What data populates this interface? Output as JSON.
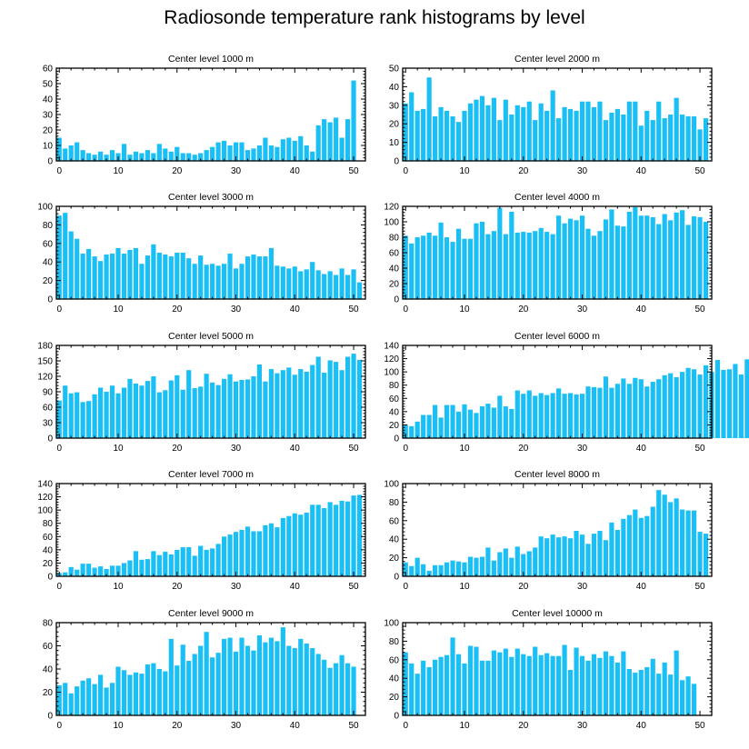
{
  "title": "Radiosonde temperature rank histograms by level",
  "bar_color": "#1ac0f5",
  "chart_data": [
    {
      "type": "bar",
      "title": "Center level 1000 m",
      "ylim": [
        0,
        60
      ],
      "yticks": [
        0,
        10,
        20,
        30,
        40,
        50,
        60
      ],
      "xlim": [
        -0.5,
        52
      ],
      "xticks": [
        0,
        10,
        20,
        30,
        40,
        50
      ],
      "values": [
        15,
        8,
        10,
        12,
        7,
        5,
        4,
        6,
        4,
        7,
        5,
        11,
        4,
        6,
        5,
        7,
        5,
        11,
        8,
        6,
        9,
        5,
        5,
        4,
        5,
        7,
        9,
        12,
        13,
        10,
        12,
        12,
        7,
        8,
        10,
        15,
        10,
        9,
        14,
        15,
        13,
        16,
        10,
        6,
        23,
        27,
        25,
        28,
        15,
        27,
        52,
        0
      ]
    },
    {
      "type": "bar",
      "title": "Center level 2000 m",
      "ylim": [
        0,
        50
      ],
      "yticks": [
        0,
        10,
        20,
        30,
        40,
        50
      ],
      "xlim": [
        -0.5,
        52
      ],
      "xticks": [
        0,
        10,
        20,
        30,
        40,
        50
      ],
      "values": [
        31,
        37,
        27,
        28,
        45,
        24,
        29,
        27,
        24,
        21,
        27,
        31,
        33,
        35,
        30,
        34,
        22,
        33,
        25,
        30,
        29,
        32,
        22,
        31,
        27,
        38,
        23,
        29,
        28,
        27,
        32,
        32,
        29,
        32,
        22,
        26,
        28,
        25,
        32,
        32,
        19,
        27,
        22,
        32,
        23,
        25,
        34,
        25,
        24,
        24,
        17,
        23
      ]
    },
    {
      "type": "bar",
      "title": "Center level 3000 m",
      "ylim": [
        0,
        100
      ],
      "yticks": [
        0,
        20,
        40,
        60,
        80,
        100
      ],
      "xlim": [
        -0.5,
        52
      ],
      "xticks": [
        0,
        10,
        20,
        30,
        40,
        50
      ],
      "values": [
        90,
        93,
        73,
        65,
        49,
        54,
        46,
        41,
        48,
        49,
        55,
        49,
        53,
        55,
        38,
        47,
        59,
        50,
        48,
        46,
        50,
        50,
        44,
        38,
        47,
        37,
        38,
        36,
        38,
        49,
        33,
        38,
        46,
        48,
        46,
        46,
        55,
        36,
        35,
        33,
        35,
        30,
        32,
        40,
        31,
        27,
        30,
        26,
        33,
        26,
        32,
        18
      ]
    },
    {
      "type": "bar",
      "title": "Center level 4000 m",
      "ylim": [
        0,
        120
      ],
      "yticks": [
        0,
        20,
        40,
        60,
        80,
        100,
        120
      ],
      "xlim": [
        -0.5,
        52
      ],
      "xticks": [
        0,
        10,
        20,
        30,
        40,
        50
      ],
      "values": [
        82,
        72,
        80,
        82,
        86,
        82,
        99,
        80,
        74,
        91,
        78,
        78,
        98,
        100,
        84,
        88,
        118,
        84,
        113,
        86,
        87,
        86,
        88,
        92,
        87,
        84,
        108,
        98,
        104,
        102,
        108,
        91,
        82,
        88,
        103,
        116,
        95,
        94,
        113,
        119,
        108,
        108,
        106,
        97,
        110,
        102,
        112,
        115,
        96,
        107,
        106,
        100
      ]
    },
    {
      "type": "bar",
      "title": "Center level 5000 m",
      "ylim": [
        0,
        180
      ],
      "yticks": [
        0,
        30,
        60,
        90,
        120,
        150,
        180
      ],
      "xlim": [
        -0.5,
        52
      ],
      "xticks": [
        0,
        10,
        20,
        30,
        40,
        50
      ],
      "values": [
        73,
        102,
        87,
        89,
        70,
        72,
        85,
        98,
        90,
        102,
        87,
        98,
        115,
        106,
        102,
        111,
        120,
        89,
        93,
        112,
        122,
        94,
        132,
        97,
        100,
        125,
        108,
        103,
        115,
        124,
        110,
        113,
        114,
        120,
        143,
        110,
        134,
        126,
        132,
        137,
        123,
        134,
        129,
        142,
        158,
        127,
        151,
        148,
        132,
        158,
        164,
        152
      ]
    },
    {
      "type": "bar",
      "title": "Center level 6000 m",
      "ylim": [
        0,
        140
      ],
      "yticks": [
        0,
        20,
        40,
        60,
        80,
        100,
        120,
        140
      ],
      "xlim": [
        -0.5,
        52
      ],
      "xticks": [
        0,
        10,
        20,
        30,
        40,
        50
      ],
      "values": [
        20,
        18,
        25,
        35,
        35,
        50,
        31,
        50,
        50,
        40,
        51,
        43,
        38,
        48,
        52,
        46,
        64,
        48,
        44,
        72,
        67,
        72,
        64,
        68,
        65,
        68,
        75,
        67,
        68,
        66,
        67,
        78,
        77,
        76,
        93,
        76,
        82,
        90,
        82,
        91,
        89,
        78,
        85,
        89,
        95,
        98,
        92,
        100,
        106,
        104,
        96,
        110,
        100,
        118,
        103,
        104,
        112,
        96,
        119,
        139
      ]
    },
    {
      "type": "bar",
      "title": "Center level 7000 m",
      "ylim": [
        0,
        140
      ],
      "yticks": [
        0,
        20,
        40,
        60,
        80,
        100,
        120,
        140
      ],
      "xlim": [
        -0.5,
        52
      ],
      "xticks": [
        0,
        10,
        20,
        30,
        40,
        50
      ],
      "values": [
        5,
        6,
        14,
        10,
        19,
        19,
        13,
        15,
        11,
        16,
        16,
        20,
        24,
        38,
        25,
        26,
        38,
        32,
        37,
        33,
        40,
        44,
        44,
        31,
        46,
        40,
        42,
        49,
        60,
        63,
        67,
        70,
        75,
        68,
        68,
        77,
        80,
        74,
        88,
        91,
        95,
        93,
        96,
        108,
        108,
        103,
        112,
        108,
        114,
        113,
        122,
        123
      ]
    },
    {
      "type": "bar",
      "title": "Center level 8000 m",
      "ylim": [
        0,
        100
      ],
      "yticks": [
        0,
        20,
        40,
        60,
        80,
        100
      ],
      "xlim": [
        -0.5,
        52
      ],
      "xticks": [
        0,
        10,
        20,
        30,
        40,
        50
      ],
      "values": [
        15,
        11,
        20,
        13,
        6,
        12,
        12,
        15,
        17,
        16,
        15,
        21,
        20,
        21,
        31,
        17,
        26,
        30,
        20,
        32,
        24,
        27,
        31,
        43,
        41,
        45,
        42,
        43,
        41,
        49,
        45,
        35,
        46,
        49,
        39,
        58,
        50,
        62,
        66,
        72,
        63,
        65,
        75,
        93,
        88,
        80,
        84,
        72,
        71,
        71,
        48,
        46
      ]
    },
    {
      "type": "bar",
      "title": "Center level 9000 m",
      "ylim": [
        0,
        80
      ],
      "yticks": [
        0,
        20,
        40,
        60,
        80
      ],
      "xlim": [
        -0.5,
        52
      ],
      "xticks": [
        0,
        10,
        20,
        30,
        40,
        50
      ],
      "values": [
        26,
        28,
        19,
        25,
        30,
        32,
        27,
        35,
        24,
        28,
        42,
        39,
        35,
        37,
        36,
        44,
        45,
        40,
        38,
        66,
        43,
        61,
        47,
        53,
        60,
        72,
        50,
        54,
        66,
        67,
        55,
        67,
        60,
        56,
        69,
        63,
        67,
        64,
        76,
        60,
        58,
        66,
        62,
        58,
        53,
        48,
        41,
        45,
        52,
        45,
        42,
        0
      ]
    },
    {
      "type": "bar",
      "title": "Center level 10000 m",
      "ylim": [
        0,
        100
      ],
      "yticks": [
        0,
        20,
        40,
        60,
        80,
        100
      ],
      "xlim": [
        -0.5,
        52
      ],
      "xticks": [
        0,
        10,
        20,
        30,
        40,
        50
      ],
      "values": [
        68,
        56,
        45,
        59,
        52,
        60,
        63,
        65,
        84,
        66,
        56,
        75,
        74,
        59,
        59,
        70,
        68,
        72,
        63,
        72,
        66,
        64,
        74,
        65,
        67,
        64,
        64,
        76,
        49,
        73,
        64,
        59,
        66,
        62,
        69,
        64,
        57,
        69,
        50,
        46,
        49,
        52,
        61,
        45,
        57,
        44,
        70,
        38,
        42,
        34,
        0,
        0
      ]
    }
  ]
}
